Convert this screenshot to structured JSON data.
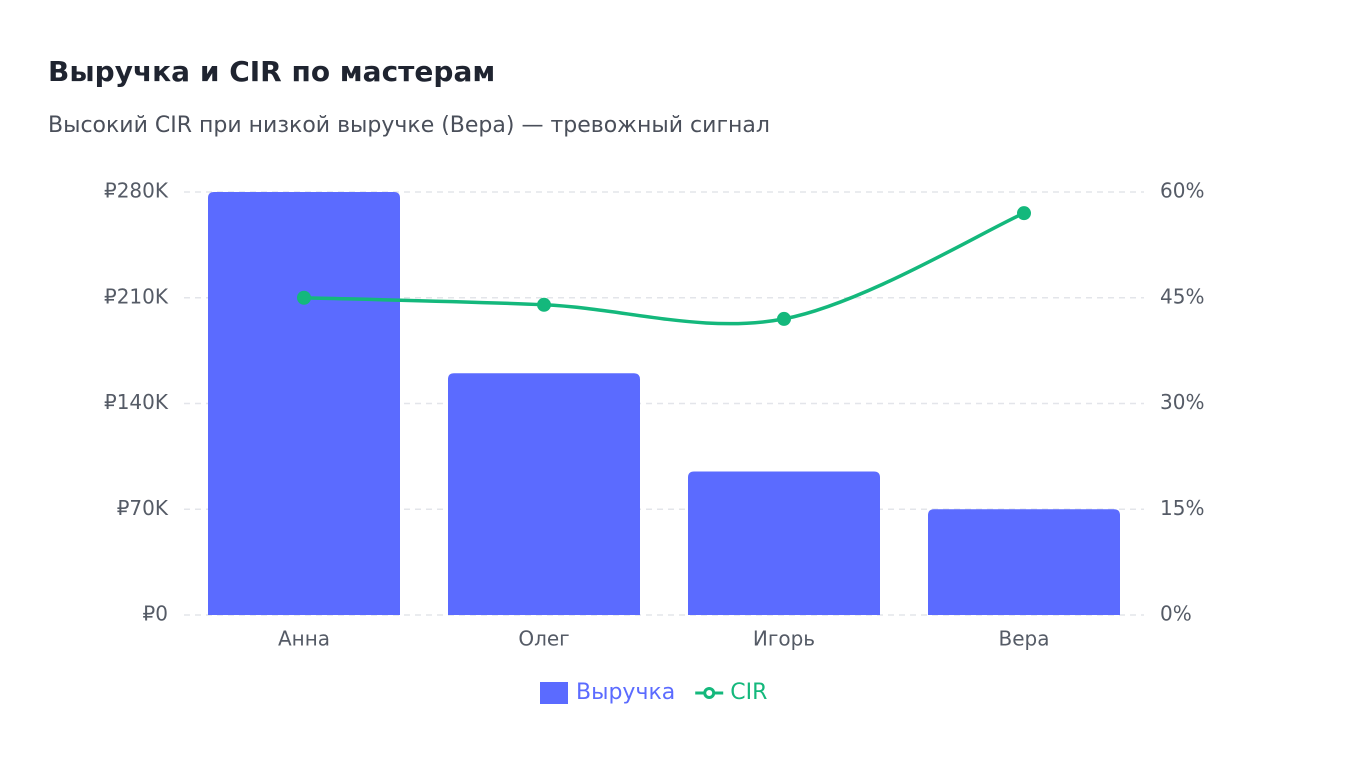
{
  "chart_data": {
    "type": "bar_line",
    "title": "Выручка и CIR по мастерам",
    "subtitle": "Высокий CIR при низкой выручке (Вера) — тревожный сигнал",
    "categories": [
      "Анна",
      "Олег",
      "Игорь",
      "Вера"
    ],
    "series": [
      {
        "name": "Выручка",
        "type": "bar",
        "color": "#5b6bff",
        "values": [
          280000,
          160000,
          95000,
          70000
        ]
      },
      {
        "name": "CIR",
        "type": "line",
        "axis": "y2",
        "color": "#14b87c",
        "values": [
          45,
          44,
          42,
          57
        ]
      }
    ],
    "ylim": [
      0,
      280000
    ],
    "yticks": [
      {
        "value": 0,
        "label": "₽0"
      },
      {
        "value": 70000,
        "label": "₽70K"
      },
      {
        "value": 140000,
        "label": "₽140K"
      },
      {
        "value": 210000,
        "label": "₽210K"
      },
      {
        "value": 280000,
        "label": "₽280K"
      }
    ],
    "y2lim": [
      0,
      60
    ],
    "y2ticks": [
      {
        "value": 0,
        "label": "0%"
      },
      {
        "value": 15,
        "label": "15%"
      },
      {
        "value": 30,
        "label": "30%"
      },
      {
        "value": 45,
        "label": "45%"
      },
      {
        "value": 60,
        "label": "60%"
      }
    ],
    "grid": true,
    "legend": "bottom"
  }
}
